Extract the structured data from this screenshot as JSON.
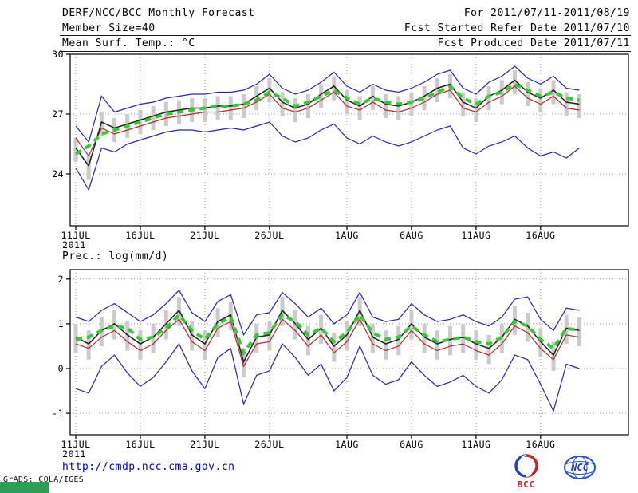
{
  "header": {
    "title": "DERF/NCC/BCC Monthly Forecast",
    "member_size": "Member Size=40",
    "temp_label": "Mean Surf. Temp.: °C",
    "for_range": "For 2011/07/11-2011/08/19",
    "fcst_started": "Fcst Started Refer Date 2011/07/10",
    "fcst_produced": "Fcst Produced Date 2011/07/11"
  },
  "precip_label": "Prec.: log(mm/d)",
  "footer": {
    "url": "http://cmdp.ncc.cma.gov.cn",
    "grads_credit": "GrADS: COLA/IGES",
    "bcc_logo_text": "BCC",
    "ncc_logo_text": "NCC"
  },
  "chart_data": [
    {
      "id": "temperature-forecast-chart",
      "type": "line",
      "title": "Mean Surf. Temp.: °C",
      "ylabel": "Mean Surf. Temp.: °C",
      "x_start_date": "11JUL2011",
      "x_days": 40,
      "year_label": "2011",
      "ylim": [
        21.4,
        30
      ],
      "yticks": [
        24,
        27,
        30
      ],
      "xticks": [
        {
          "label": "11JUL",
          "day": 0
        },
        {
          "label": "16JUL",
          "day": 5
        },
        {
          "label": "21JUL",
          "day": 10
        },
        {
          "label": "26JUL",
          "day": 15
        },
        {
          "label": "1AUG",
          "day": 21
        },
        {
          "label": "6AUG",
          "day": 26
        },
        {
          "label": "11AUG",
          "day": 31
        },
        {
          "label": "16AUG",
          "day": 36
        }
      ],
      "grid": true,
      "spread_bars": {
        "color": "#cbcbcb",
        "low": [
          24.6,
          23.7,
          25.9,
          25.6,
          25.8,
          26.0,
          26.2,
          26.4,
          26.5,
          26.6,
          26.6,
          26.7,
          26.7,
          26.8,
          27.2,
          27.6,
          26.9,
          26.6,
          26.8,
          27.3,
          27.7,
          27.0,
          26.7,
          27.2,
          26.8,
          26.7,
          26.9,
          27.2,
          27.6,
          27.8,
          26.9,
          26.6,
          27.2,
          27.5,
          28.0,
          27.4,
          27.1,
          27.5,
          26.9,
          26.8
        ],
        "high": [
          25.8,
          24.9,
          27.1,
          26.8,
          27.0,
          27.2,
          27.4,
          27.6,
          27.7,
          27.8,
          27.8,
          27.9,
          27.9,
          28.0,
          28.4,
          28.8,
          28.1,
          27.8,
          28.0,
          28.5,
          28.9,
          28.2,
          27.9,
          28.4,
          28.0,
          27.9,
          28.1,
          28.4,
          28.8,
          29.0,
          28.1,
          27.8,
          28.4,
          28.7,
          29.2,
          28.6,
          28.3,
          28.7,
          28.1,
          28.0
        ]
      },
      "series": [
        {
          "id": "ensemble-max",
          "name": "Ensemble Max",
          "color": "#2424b4",
          "width": 1.2,
          "dash": "",
          "values": [
            26.4,
            25.6,
            27.9,
            27.1,
            27.3,
            27.5,
            27.6,
            27.8,
            27.9,
            28.0,
            28.0,
            28.1,
            28.1,
            28.2,
            28.5,
            29.0,
            28.3,
            28.0,
            28.2,
            28.6,
            29.1,
            28.4,
            28.1,
            28.5,
            28.2,
            28.1,
            28.3,
            28.6,
            29.0,
            29.2,
            28.3,
            28.0,
            28.6,
            28.9,
            29.4,
            28.8,
            28.5,
            28.9,
            28.3,
            28.2
          ]
        },
        {
          "id": "ensemble-min",
          "name": "Ensemble Min",
          "color": "#2424b4",
          "width": 1.2,
          "dash": "",
          "values": [
            24.3,
            23.2,
            25.3,
            25.1,
            25.5,
            25.7,
            25.9,
            26.1,
            26.2,
            26.2,
            26.1,
            26.2,
            26.3,
            26.2,
            26.4,
            26.6,
            25.9,
            25.6,
            25.8,
            26.2,
            26.5,
            25.8,
            25.5,
            25.9,
            25.6,
            25.4,
            25.6,
            25.9,
            26.2,
            26.4,
            25.3,
            25.0,
            25.4,
            25.6,
            25.9,
            25.3,
            24.9,
            25.1,
            24.8,
            25.3
          ]
        },
        {
          "id": "model-forecast",
          "name": "Model Forecast",
          "color": "#b42828",
          "width": 1.2,
          "dash": "",
          "values": [
            25.8,
            24.9,
            26.3,
            26.0,
            26.2,
            26.4,
            26.6,
            26.8,
            26.9,
            27.0,
            27.1,
            27.1,
            27.2,
            27.3,
            27.6,
            28.0,
            27.3,
            27.1,
            27.3,
            27.7,
            28.1,
            27.4,
            27.2,
            27.6,
            27.2,
            27.1,
            27.3,
            27.6,
            28.0,
            28.2,
            27.3,
            27.1,
            27.6,
            27.9,
            28.4,
            27.8,
            27.5,
            27.9,
            27.3,
            27.2
          ]
        },
        {
          "id": "ensemble-mean",
          "name": "Ensemble Mean",
          "color": "#1c1c1c",
          "width": 1.5,
          "dash": "",
          "values": [
            25.3,
            24.4,
            26.6,
            26.3,
            26.5,
            26.7,
            26.9,
            27.1,
            27.2,
            27.3,
            27.3,
            27.4,
            27.4,
            27.5,
            27.9,
            28.3,
            27.6,
            27.3,
            27.5,
            28.0,
            28.4,
            27.7,
            27.4,
            27.9,
            27.5,
            27.4,
            27.6,
            27.9,
            28.3,
            28.5,
            27.6,
            27.3,
            27.9,
            28.2,
            28.7,
            28.1,
            27.8,
            28.2,
            27.6,
            27.5
          ]
        },
        {
          "id": "climatology",
          "name": "Climatology",
          "color": "#37c837",
          "width": 4,
          "dash": "8 6",
          "values": [
            25.0,
            25.4,
            26.0,
            26.2,
            26.4,
            26.6,
            26.8,
            27.0,
            27.1,
            27.2,
            27.3,
            27.4,
            27.4,
            27.5,
            27.7,
            28.1,
            27.8,
            27.4,
            27.6,
            27.9,
            28.2,
            27.8,
            27.5,
            27.8,
            27.6,
            27.5,
            27.6,
            27.8,
            28.1,
            28.4,
            27.8,
            27.5,
            27.9,
            28.1,
            28.5,
            28.2,
            27.9,
            28.1,
            27.8,
            27.7
          ]
        }
      ]
    },
    {
      "id": "precipitation-forecast-chart",
      "type": "line",
      "title": "Prec.: log(mm/d)",
      "ylabel": "Prec.: log(mm/d)",
      "x_start_date": "11JUL2011",
      "x_days": 40,
      "year_label": "2011",
      "ylim": [
        -1.48,
        2.21
      ],
      "yticks": [
        -1,
        0,
        1,
        2
      ],
      "xticks": [
        {
          "label": "11JUL",
          "day": 0
        },
        {
          "label": "16JUL",
          "day": 5
        },
        {
          "label": "21JUL",
          "day": 10
        },
        {
          "label": "26JUL",
          "day": 15
        },
        {
          "label": "1AUG",
          "day": 21
        },
        {
          "label": "6AUG",
          "day": 26
        },
        {
          "label": "11AUG",
          "day": 31
        },
        {
          "label": "16AUG",
          "day": 36
        }
      ],
      "grid": true,
      "spread_bars": {
        "color": "#cbcbcb",
        "low": [
          0.35,
          0.2,
          0.5,
          0.65,
          0.4,
          0.2,
          0.35,
          0.65,
          0.95,
          0.4,
          0.2,
          0.7,
          0.85,
          -0.2,
          0.35,
          0.4,
          0.95,
          0.65,
          0.3,
          0.55,
          0.15,
          0.4,
          0.95,
          0.35,
          0.2,
          0.3,
          0.65,
          0.35,
          0.2,
          0.3,
          0.35,
          0.2,
          0.1,
          0.35,
          0.75,
          0.6,
          0.25,
          -0.05,
          0.55,
          0.5
        ],
        "high": [
          1.0,
          0.85,
          1.15,
          1.3,
          1.05,
          0.85,
          1.0,
          1.3,
          1.6,
          1.05,
          0.85,
          1.35,
          1.5,
          0.45,
          1.0,
          1.05,
          1.6,
          1.3,
          0.95,
          1.2,
          0.8,
          1.05,
          1.6,
          1.0,
          0.85,
          0.95,
          1.3,
          1.0,
          0.85,
          0.95,
          1.0,
          0.85,
          0.75,
          1.0,
          1.4,
          1.25,
          0.9,
          0.6,
          1.2,
          1.15
        ]
      },
      "series": [
        {
          "id": "ensemble-max",
          "name": "Ensemble Max",
          "color": "#2424b4",
          "width": 1.2,
          "dash": "",
          "values": [
            1.15,
            1.05,
            1.3,
            1.45,
            1.25,
            1.05,
            1.2,
            1.45,
            1.75,
            1.25,
            1.05,
            1.5,
            1.65,
            0.75,
            1.2,
            1.25,
            1.7,
            1.45,
            1.15,
            1.35,
            1.0,
            1.2,
            1.7,
            1.15,
            1.05,
            1.1,
            1.45,
            1.2,
            1.05,
            1.1,
            1.2,
            1.05,
            0.95,
            1.15,
            1.55,
            1.6,
            1.1,
            0.85,
            1.35,
            1.3
          ]
        },
        {
          "id": "ensemble-min",
          "name": "Ensemble Min",
          "color": "#2424b4",
          "width": 1.2,
          "dash": "",
          "values": [
            -0.45,
            -0.55,
            0.05,
            0.3,
            -0.1,
            -0.4,
            -0.2,
            0.15,
            0.55,
            -0.05,
            -0.45,
            0.25,
            0.45,
            -0.8,
            -0.15,
            -0.05,
            0.55,
            0.25,
            -0.15,
            0.1,
            -0.5,
            -0.2,
            0.5,
            -0.15,
            -0.35,
            -0.25,
            0.15,
            -0.15,
            -0.4,
            -0.3,
            -0.15,
            -0.4,
            -0.55,
            -0.25,
            0.3,
            0.2,
            -0.35,
            -0.95,
            0.1,
            0.0
          ]
        },
        {
          "id": "model-forecast",
          "name": "Model Forecast",
          "color": "#b42828",
          "width": 1.2,
          "dash": "",
          "values": [
            0.55,
            0.45,
            0.7,
            0.85,
            0.6,
            0.4,
            0.55,
            0.85,
            1.1,
            0.6,
            0.4,
            0.9,
            1.05,
            0.05,
            0.55,
            0.6,
            1.1,
            0.85,
            0.5,
            0.75,
            0.35,
            0.6,
            1.1,
            0.55,
            0.4,
            0.5,
            0.85,
            0.55,
            0.4,
            0.5,
            0.55,
            0.4,
            0.3,
            0.55,
            0.95,
            0.8,
            0.45,
            0.2,
            0.75,
            0.7
          ]
        },
        {
          "id": "ensemble-mean",
          "name": "Ensemble Mean",
          "color": "#1c1c1c",
          "width": 1.5,
          "dash": "",
          "values": [
            0.7,
            0.55,
            0.85,
            1.0,
            0.75,
            0.55,
            0.7,
            1.0,
            1.3,
            0.75,
            0.55,
            1.05,
            1.2,
            0.15,
            0.7,
            0.75,
            1.3,
            1.0,
            0.65,
            0.9,
            0.5,
            0.75,
            1.3,
            0.7,
            0.55,
            0.65,
            1.0,
            0.7,
            0.55,
            0.65,
            0.7,
            0.55,
            0.45,
            0.7,
            1.1,
            0.95,
            0.6,
            0.3,
            0.9,
            0.85
          ]
        },
        {
          "id": "climatology",
          "name": "Climatology",
          "color": "#37c837",
          "width": 4,
          "dash": "8 6",
          "values": [
            0.65,
            0.7,
            0.85,
            0.95,
            0.9,
            0.65,
            0.7,
            0.9,
            1.2,
            0.85,
            0.65,
            1.0,
            1.15,
            0.35,
            0.75,
            0.8,
            1.2,
            1.05,
            0.75,
            0.9,
            0.6,
            0.8,
            1.2,
            0.8,
            0.65,
            0.7,
            0.95,
            0.75,
            0.6,
            0.65,
            0.7,
            0.6,
            0.55,
            0.7,
            1.05,
            0.95,
            0.65,
            0.45,
            0.9,
            0.85
          ]
        }
      ]
    }
  ]
}
